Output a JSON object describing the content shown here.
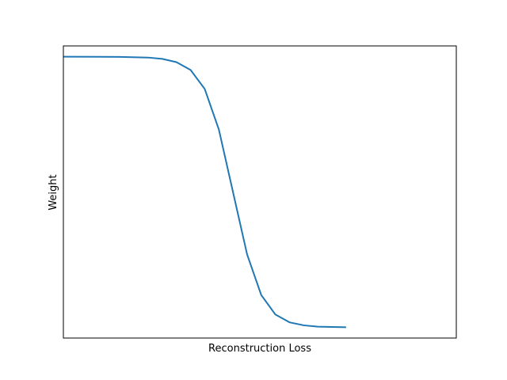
{
  "chart_data": {
    "type": "line",
    "title": "",
    "xlabel": "Reconstruction Loss",
    "ylabel": "Weight",
    "xlim": [
      0,
      1.39
    ],
    "ylim": [
      -0.04,
      1.04
    ],
    "grid": false,
    "ticks_visible": false,
    "series": [
      {
        "color": "#1f77b4",
        "x": [
          0.0,
          0.2,
          0.3,
          0.35,
          0.4,
          0.45,
          0.5,
          0.55,
          0.6,
          0.65,
          0.7,
          0.75,
          0.8,
          0.85,
          0.9,
          0.95,
          1.0
        ],
        "y": [
          1.0,
          0.9995,
          0.997,
          0.992,
          0.98,
          0.951,
          0.881,
          0.731,
          0.5,
          0.269,
          0.119,
          0.047,
          0.018,
          0.007,
          0.002,
          0.001,
          0.0
        ]
      }
    ]
  }
}
